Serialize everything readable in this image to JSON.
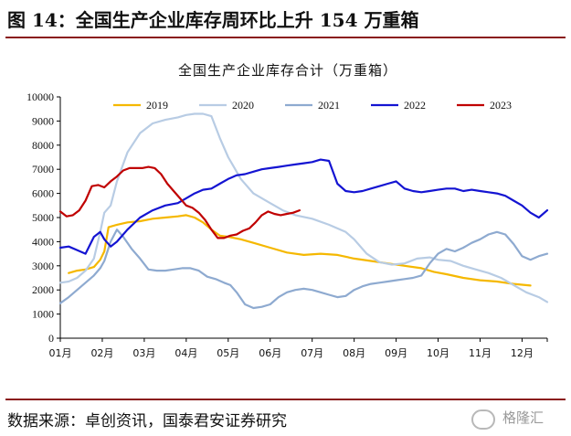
{
  "figure": {
    "title": "图 14：全国生产企业库存周环比上升 154 万重箱",
    "source": "数据来源：卓创资讯，国泰君安证券研究",
    "watermark": "格隆汇"
  },
  "colors": {
    "rule": "#8a1a1a",
    "series_2019": "#f5b800",
    "series_2020": "#b8cce4",
    "series_2021": "#8eaad0",
    "series_2022": "#1414d2",
    "series_2023": "#c00000",
    "axis": "#000000"
  },
  "chart_data": {
    "type": "line",
    "title": "全国生产企业库存合计（万重箱）",
    "xlabel": "",
    "ylabel": "",
    "x_ticks": [
      "01月",
      "02月",
      "03月",
      "04月",
      "05月",
      "06月",
      "07月",
      "08月",
      "09月",
      "10月",
      "11月",
      "12月"
    ],
    "x_range": [
      1,
      12.6
    ],
    "ylim": [
      0,
      10000
    ],
    "y_ticks": [
      0,
      1000,
      2000,
      3000,
      4000,
      5000,
      6000,
      7000,
      8000,
      9000,
      10000
    ],
    "grid": false,
    "legend_position": "top",
    "series": [
      {
        "name": "2019",
        "x": [
          1.2,
          1.4,
          1.6,
          1.8,
          1.95,
          2.05,
          2.15,
          2.35,
          2.6,
          2.9,
          3.2,
          3.5,
          3.8,
          4.0,
          4.2,
          4.4,
          4.6,
          4.8,
          5.0,
          5.3,
          5.6,
          6.0,
          6.4,
          6.8,
          7.2,
          7.6,
          8.0,
          8.4,
          8.8,
          9.2,
          9.6,
          9.9,
          10.2,
          10.6,
          11.0,
          11.4,
          11.8,
          12.2
        ],
        "y": [
          2700,
          2800,
          2850,
          2950,
          3250,
          3600,
          4600,
          4700,
          4800,
          4850,
          4950,
          5000,
          5050,
          5100,
          5000,
          4800,
          4500,
          4250,
          4200,
          4100,
          3950,
          3750,
          3550,
          3450,
          3500,
          3450,
          3300,
          3200,
          3100,
          3000,
          2900,
          2750,
          2650,
          2500,
          2400,
          2350,
          2250,
          2180
        ]
      },
      {
        "name": "2020",
        "x": [
          1.0,
          1.2,
          1.4,
          1.6,
          1.8,
          1.95,
          2.05,
          2.2,
          2.35,
          2.6,
          2.9,
          3.2,
          3.5,
          3.8,
          4.0,
          4.2,
          4.4,
          4.6,
          4.8,
          5.0,
          5.3,
          5.6,
          6.0,
          6.3,
          6.6,
          7.0,
          7.4,
          7.8,
          8.0,
          8.3,
          8.6,
          8.9,
          9.2,
          9.5,
          9.8,
          10.0,
          10.3,
          10.6,
          10.9,
          11.2,
          11.5,
          11.8,
          12.1,
          12.4,
          12.6
        ],
        "y": [
          2300,
          2350,
          2500,
          2800,
          3300,
          4400,
          5200,
          5500,
          6500,
          7700,
          8500,
          8900,
          9050,
          9150,
          9250,
          9300,
          9300,
          9200,
          8300,
          7500,
          6600,
          6000,
          5600,
          5300,
          5100,
          4950,
          4700,
          4400,
          4100,
          3500,
          3150,
          3050,
          3100,
          3300,
          3350,
          3250,
          3200,
          3000,
          2850,
          2700,
          2500,
          2200,
          1900,
          1700,
          1500
        ]
      },
      {
        "name": "2021",
        "x": [
          1.0,
          1.2,
          1.4,
          1.6,
          1.8,
          1.95,
          2.05,
          2.2,
          2.35,
          2.5,
          2.7,
          2.9,
          3.1,
          3.3,
          3.5,
          3.7,
          3.9,
          4.1,
          4.3,
          4.5,
          4.7,
          4.9,
          5.05,
          5.2,
          5.4,
          5.6,
          5.8,
          6.0,
          6.2,
          6.4,
          6.6,
          6.8,
          7.0,
          7.2,
          7.4,
          7.6,
          7.8,
          8.0,
          8.2,
          8.4,
          8.6,
          8.8,
          9.0,
          9.2,
          9.4,
          9.6,
          9.8,
          10.0,
          10.2,
          10.4,
          10.6,
          10.8,
          11.0,
          11.2,
          11.4,
          11.6,
          11.8,
          12.0,
          12.2,
          12.4,
          12.6
        ],
        "y": [
          1450,
          1700,
          2000,
          2300,
          2600,
          2900,
          3200,
          4000,
          4500,
          4200,
          3700,
          3300,
          2850,
          2800,
          2800,
          2850,
          2900,
          2900,
          2800,
          2550,
          2450,
          2300,
          2200,
          1900,
          1400,
          1250,
          1300,
          1400,
          1700,
          1900,
          2000,
          2050,
          2000,
          1900,
          1800,
          1700,
          1750,
          2000,
          2150,
          2250,
          2300,
          2350,
          2400,
          2450,
          2500,
          2600,
          3100,
          3500,
          3700,
          3600,
          3750,
          3950,
          4100,
          4300,
          4400,
          4300,
          3900,
          3400,
          3250,
          3400,
          3500
        ]
      },
      {
        "name": "2022",
        "x": [
          1.0,
          1.2,
          1.4,
          1.6,
          1.8,
          1.95,
          2.05,
          2.2,
          2.35,
          2.6,
          2.9,
          3.2,
          3.5,
          3.8,
          4.0,
          4.2,
          4.4,
          4.6,
          4.8,
          5.0,
          5.2,
          5.4,
          5.6,
          5.8,
          6.0,
          6.2,
          6.4,
          6.6,
          6.8,
          7.0,
          7.2,
          7.4,
          7.6,
          7.8,
          8.0,
          8.2,
          8.4,
          8.6,
          8.8,
          9.0,
          9.2,
          9.4,
          9.6,
          9.8,
          10.0,
          10.2,
          10.4,
          10.6,
          10.8,
          11.0,
          11.2,
          11.4,
          11.6,
          11.8,
          12.0,
          12.2,
          12.4,
          12.6
        ],
        "y": [
          3750,
          3800,
          3650,
          3500,
          4200,
          4400,
          4100,
          3800,
          4000,
          4500,
          5000,
          5300,
          5500,
          5600,
          5800,
          6000,
          6150,
          6200,
          6400,
          6600,
          6750,
          6800,
          6900,
          7000,
          7050,
          7100,
          7150,
          7200,
          7250,
          7300,
          7400,
          7350,
          6400,
          6100,
          6050,
          6100,
          6200,
          6300,
          6400,
          6500,
          6200,
          6100,
          6050,
          6100,
          6150,
          6200,
          6200,
          6100,
          6150,
          6100,
          6050,
          6000,
          5900,
          5700,
          5500,
          5200,
          5000,
          5300
        ]
      },
      {
        "name": "2023",
        "x": [
          1.0,
          1.15,
          1.3,
          1.45,
          1.6,
          1.75,
          1.9,
          2.05,
          2.2,
          2.35,
          2.5,
          2.65,
          2.8,
          2.95,
          3.1,
          3.25,
          3.4,
          3.55,
          3.7,
          3.85,
          4.0,
          4.15,
          4.3,
          4.45,
          4.6,
          4.75,
          4.9,
          5.05,
          5.2,
          5.35,
          5.5,
          5.65,
          5.8,
          5.95,
          6.1,
          6.25,
          6.4,
          6.55,
          6.7
        ],
        "y": [
          5250,
          5050,
          5100,
          5300,
          5700,
          6300,
          6350,
          6250,
          6500,
          6700,
          6950,
          7050,
          7050,
          7050,
          7100,
          7050,
          6800,
          6400,
          6100,
          5800,
          5500,
          5400,
          5200,
          4900,
          4500,
          4150,
          4150,
          4250,
          4300,
          4450,
          4550,
          4800,
          5100,
          5250,
          5150,
          5100,
          5150,
          5200,
          5300
        ]
      }
    ]
  }
}
